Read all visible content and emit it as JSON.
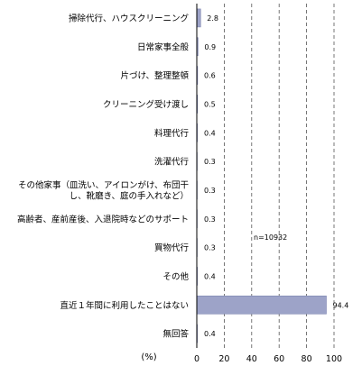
{
  "chart_data": {
    "type": "bar",
    "orientation": "horizontal",
    "categories": [
      "掃除代行、ハウスクリーニング",
      "日常家事全般",
      "片づけ、整理整頓",
      "クリーニング受け渡し",
      "料理代行",
      "洗濯代行",
      [
        "その他家事（皿洗い、アイロンがけ、布団干",
        "し、靴磨き、庭の手入れなど）"
      ],
      "高齢者、産前産後、入退院時などのサポート",
      "買物代行",
      "その他",
      "直近１年間に利用したことはない",
      "無回答"
    ],
    "values": [
      2.8,
      0.9,
      0.6,
      0.5,
      0.4,
      0.3,
      0.3,
      0.3,
      0.3,
      0.4,
      94.4,
      0.4
    ],
    "value_labels": [
      "2.8",
      "0.9",
      "0.6",
      "0.5",
      "0.4",
      "0.3",
      "0.3",
      "0.3",
      "0.3",
      "0.4",
      "94.4",
      "0.4"
    ],
    "xlim": [
      0,
      100
    ],
    "xticks": [
      "0",
      "20",
      "40",
      "60",
      "80",
      "100"
    ],
    "unit_label": "(%)",
    "annotation": "n=10932",
    "grid": "vertical dashed",
    "bar_color": "#9da3c8"
  }
}
